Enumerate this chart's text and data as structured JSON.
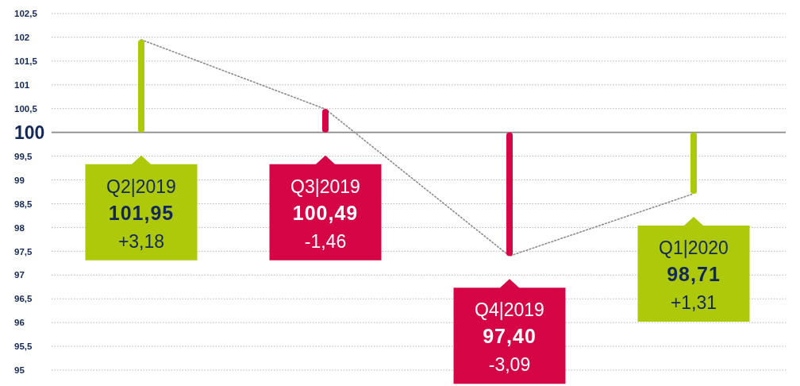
{
  "chart_data": {
    "type": "bar",
    "categories": [
      "Q2|2019",
      "Q3|2019",
      "Q4|2019",
      "Q1|2020"
    ],
    "series": [
      {
        "colors": [
          "#adc90a",
          "#d50546",
          "#d50546",
          "#adc90a"
        ],
        "base": [
          100,
          100,
          100,
          100
        ],
        "values": [
          1.95,
          0.49,
          -2.6,
          -1.29
        ]
      },
      {
        "type": "line",
        "color": "#8a8a8a",
        "line_style": "dotted",
        "marker": "none",
        "values": [
          101.95,
          100.49,
          97.4,
          98.71
        ]
      }
    ],
    "annotations": [
      "101,95",
      "+3,18",
      "100,49",
      "-1,46",
      "97,40",
      "-3,09",
      "98,71",
      "+1,31"
    ],
    "ylim": [
      95,
      102.5
    ],
    "yticks": [
      95,
      {
        "value": 95.5,
        "label": "95,5"
      },
      96,
      {
        "value": 96.5,
        "label": "96,5"
      },
      97,
      {
        "value": 97.5,
        "label": "97,5"
      },
      98,
      {
        "value": 98.5,
        "label": "98,5"
      },
      99,
      {
        "value": 99.5,
        "label": "99,5"
      },
      {
        "value": 100.5,
        "label": "100,5"
      },
      101,
      {
        "value": 101.5,
        "label": "101,5"
      },
      102,
      {
        "value": 102.5,
        "label": "102,5"
      }
    ],
    "ref_lines": [
      {
        "axis": "y",
        "value": 100,
        "label": "100",
        "color": "#8c8c8c"
      }
    ],
    "grid": "y",
    "tick_labels": "y"
  }
}
